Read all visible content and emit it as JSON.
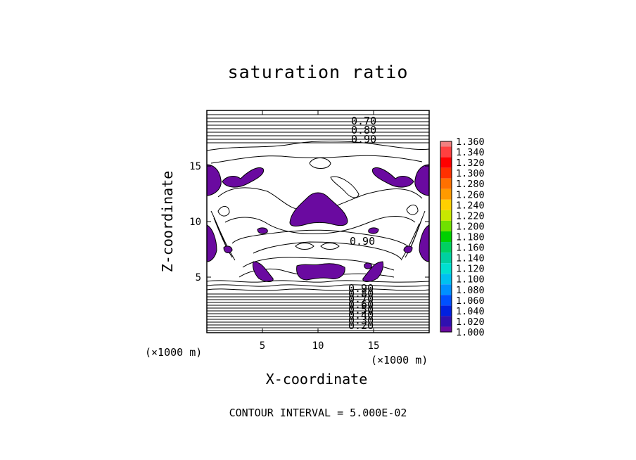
{
  "chart_data": {
    "type": "heatmap",
    "title": "saturation ratio",
    "xlabel": "X-coordinate",
    "ylabel": "Z-coordinate",
    "x_unit_left": "(×1000 m)",
    "x_unit_right": "(×1000 m)",
    "xlim": [
      0,
      20
    ],
    "ylim": [
      0,
      20
    ],
    "x_ticks": [
      5,
      10,
      15
    ],
    "y_ticks": [
      5,
      10,
      15
    ],
    "footer": "CONTOUR INTERVAL = 5.000E-02",
    "contour_labels_top": [
      "0.70",
      "0.80",
      "0.90"
    ],
    "contour_label_mid": "0.90",
    "contour_labels_bottom": [
      "0.90",
      "0.80",
      "0.70",
      "0.60",
      "0.50",
      "0.40",
      "0.30",
      "0.20"
    ],
    "colorbar": {
      "levels": [
        "1.360",
        "1.340",
        "1.320",
        "1.300",
        "1.280",
        "1.260",
        "1.240",
        "1.220",
        "1.200",
        "1.180",
        "1.160",
        "1.140",
        "1.120",
        "1.100",
        "1.080",
        "1.060",
        "1.040",
        "1.020",
        "1.000"
      ],
      "colors": [
        "#f08080",
        "#ff4040",
        "#ff0000",
        "#ff3000",
        "#ff7000",
        "#ff9a00",
        "#ffd000",
        "#c8e800",
        "#70e000",
        "#00d000",
        "#00d060",
        "#00d0a0",
        "#00e0d0",
        "#00c0f0",
        "#0090ff",
        "#0050ff",
        "#0020e0",
        "#3010b0",
        "#6a0aa0"
      ]
    },
    "regions_above_1": "purple (1.000–1.020) patches where saturation ratio exceeds 1"
  }
}
